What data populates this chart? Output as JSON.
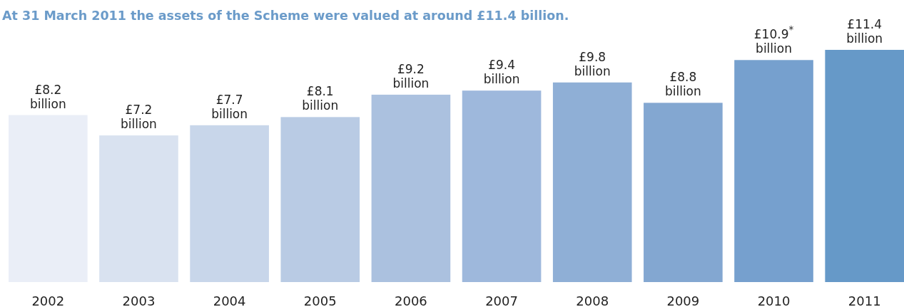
{
  "chart_data": {
    "type": "bar",
    "title": "At 31 March 2011 the assets of the Scheme were valued at around £11.4 billion.",
    "categories": [
      "2002",
      "2003",
      "2004",
      "2005",
      "2006",
      "2007",
      "2008",
      "2009",
      "2010",
      "2011"
    ],
    "values": [
      8.2,
      7.2,
      7.7,
      8.1,
      9.2,
      9.4,
      9.8,
      8.8,
      10.9,
      11.4
    ],
    "value_labels": [
      "£8.2 billion",
      "£7.2 billion",
      "£7.7 billion",
      "£8.1 billion",
      "£9.2 billion",
      "£9.4 billion",
      "£9.8 billion",
      "£8.8 billion",
      "£10.9$^{*}$ billion",
      "£11.4 billion"
    ],
    "colors": [
      "#eaeef7",
      "#d9e2f0",
      "#c8d6ea",
      "#b9cbe4",
      "#abc1df",
      "#9eb8dc",
      "#8fafd6",
      "#83a7d1",
      "#76a0ce",
      "#6699c8"
    ]
  }
}
